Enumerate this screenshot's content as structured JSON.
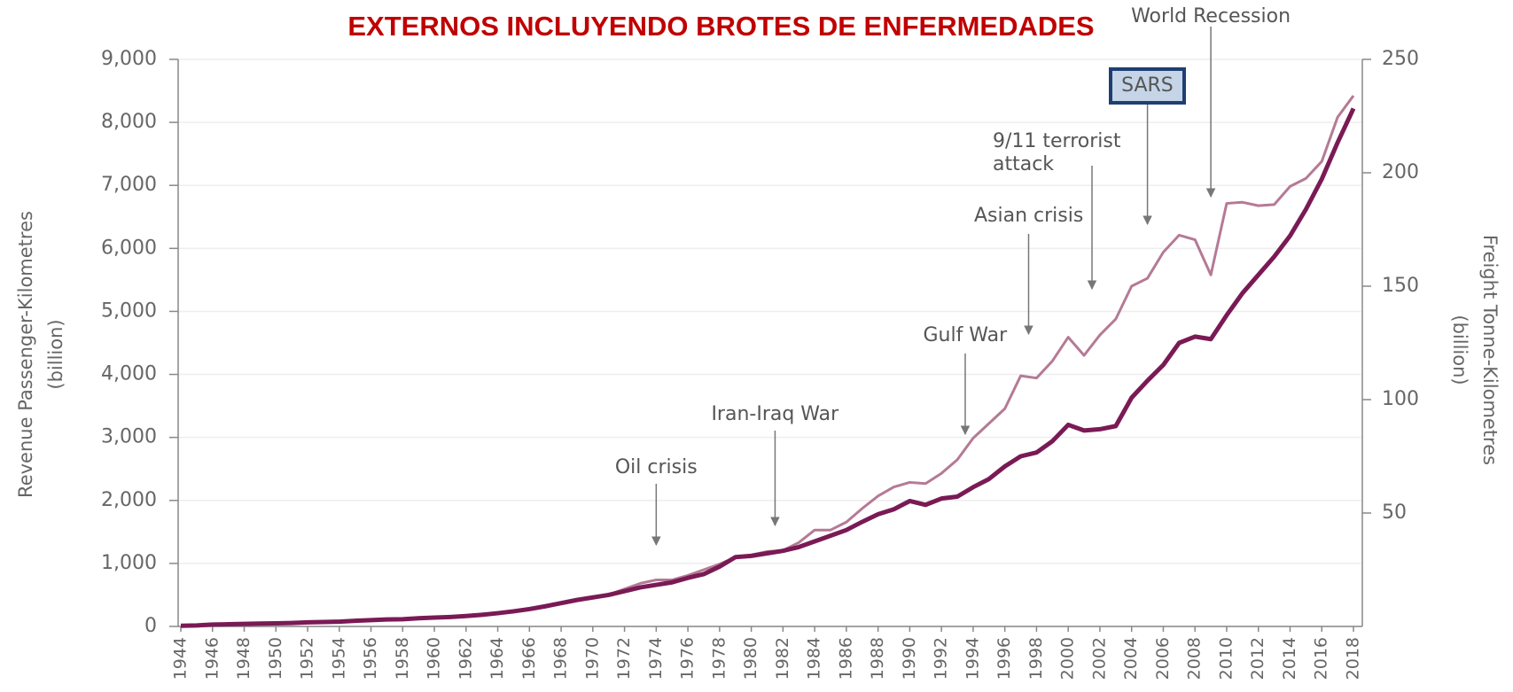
{
  "chart_data": {
    "type": "line",
    "title": "EXTERNOS INCLUYENDO BROTES DE ENFERMEDADES",
    "ylabel": "Revenue Passenger-Kilometres",
    "ylabel_unit": "(billion)",
    "y2label": "Freight Tonne-Kilometres",
    "y2label_unit": "(billion)",
    "x": [
      1944,
      1945,
      1946,
      1947,
      1948,
      1949,
      1950,
      1951,
      1952,
      1953,
      1954,
      1955,
      1956,
      1957,
      1958,
      1959,
      1960,
      1961,
      1962,
      1963,
      1964,
      1965,
      1966,
      1967,
      1968,
      1969,
      1970,
      1971,
      1972,
      1973,
      1974,
      1975,
      1976,
      1977,
      1978,
      1979,
      1980,
      1981,
      1982,
      1983,
      1984,
      1985,
      1986,
      1987,
      1988,
      1989,
      1990,
      1991,
      1992,
      1993,
      1994,
      1995,
      1996,
      1997,
      1998,
      1999,
      2000,
      2001,
      2002,
      2003,
      2004,
      2005,
      2006,
      2007,
      2008,
      2009,
      2010,
      2011,
      2012,
      2013,
      2014,
      2015,
      2016,
      2017,
      2018
    ],
    "series": [
      {
        "name": "Revenue Passenger-Kilometres",
        "color": "#7a1a55",
        "width": 5,
        "values": [
          10,
          15,
          30,
          35,
          40,
          45,
          50,
          55,
          65,
          70,
          75,
          90,
          100,
          110,
          115,
          130,
          140,
          150,
          165,
          185,
          210,
          240,
          275,
          320,
          370,
          420,
          460,
          500,
          560,
          620,
          660,
          700,
          770,
          830,
          950,
          1100,
          1120,
          1160,
          1200,
          1260,
          1350,
          1440,
          1530,
          1660,
          1780,
          1860,
          1990,
          1930,
          2030,
          2060,
          2210,
          2340,
          2540,
          2700,
          2760,
          2940,
          3200,
          3110,
          3130,
          3180,
          3630,
          3900,
          4150,
          4500,
          4600,
          4560,
          4940,
          5290,
          5580,
          5870,
          6200,
          6620,
          7100,
          7680,
          8220
        ]
      },
      {
        "name": "Freight Tonne-Kilometres",
        "color": "#b57a95",
        "width": 3,
        "axis": "y2",
        "values": [
          0.3,
          0.4,
          0.7,
          0.9,
          1.1,
          1.2,
          1.4,
          1.6,
          1.8,
          2.0,
          2.1,
          2.4,
          2.7,
          3.0,
          3.2,
          3.6,
          3.9,
          4.2,
          4.7,
          5.2,
          6.0,
          7.0,
          8.0,
          8.5,
          10.5,
          12.0,
          13.2,
          14.0,
          16.5,
          19.0,
          20.5,
          20.5,
          22.5,
          25.0,
          27.5,
          30.5,
          31.5,
          33.0,
          33.5,
          37.0,
          42.5,
          42.5,
          46.0,
          52.0,
          57.5,
          61.5,
          63.5,
          63.0,
          67.5,
          73.5,
          83.0,
          89.5,
          96.0,
          110.5,
          109.5,
          117.0,
          127.5,
          119.5,
          128.5,
          135.5,
          150.0,
          153.5,
          165.0,
          172.5,
          170.5,
          155.0,
          186.5,
          187.0,
          185.5,
          186.0,
          194.0,
          197.5,
          205.0,
          224.5,
          234.0
        ]
      }
    ],
    "xlim": [
      1944,
      2018
    ],
    "xticks": [
      1944,
      1946,
      1948,
      1950,
      1952,
      1954,
      1956,
      1958,
      1960,
      1962,
      1964,
      1966,
      1968,
      1970,
      1972,
      1974,
      1976,
      1978,
      1980,
      1982,
      1984,
      1986,
      1988,
      1990,
      1992,
      1994,
      1996,
      1998,
      2000,
      2002,
      2004,
      2006,
      2008,
      2010,
      2012,
      2014,
      2016,
      2018
    ],
    "ylim": [
      0,
      9000
    ],
    "yticks": [
      0,
      {
        "value": 1000,
        "label": "1,000"
      },
      {
        "value": 2000,
        "label": "2,000"
      },
      {
        "value": 3000,
        "label": "3,000"
      },
      {
        "value": 4000,
        "label": "4,000"
      },
      {
        "value": 5000,
        "label": "5,000"
      },
      {
        "value": 6000,
        "label": "6,000"
      },
      {
        "value": 7000,
        "label": "7,000"
      },
      {
        "value": 8000,
        "label": "8,000"
      },
      {
        "value": 9000,
        "label": "9,000"
      }
    ],
    "y2lim": [
      0,
      250
    ],
    "y2ticks": [
      50,
      100,
      150,
      200,
      250
    ],
    "grid": true,
    "annotations": [
      {
        "label": "Oil crisis",
        "x": 1974
      },
      {
        "label": "Iran-Iraq War",
        "x": 1981.5
      },
      {
        "label": "Gulf War",
        "x": 1993.5
      },
      {
        "label": "Asian crisis",
        "x": 1997.5
      },
      {
        "label": "9/11 terrorist attack",
        "x": 2001.5
      },
      {
        "label": "SARS",
        "x": 2005,
        "boxed": true
      },
      {
        "label": "World Recession",
        "x": 2009
      }
    ]
  }
}
